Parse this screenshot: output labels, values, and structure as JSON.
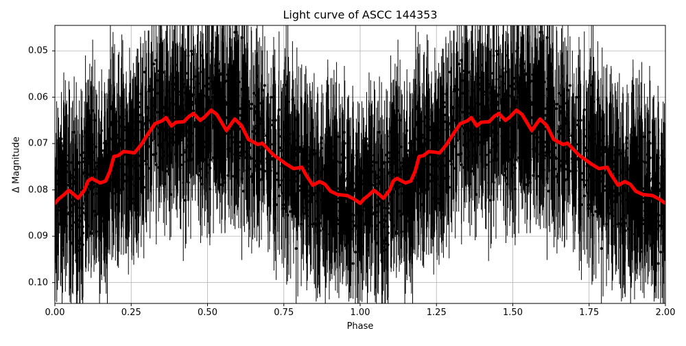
{
  "chart_data": {
    "type": "scatter",
    "title": "Light curve of ASCC 144353",
    "xlabel": "Phase",
    "ylabel": "Δ Magnitude",
    "xlim": [
      0.0,
      2.0
    ],
    "ylim": [
      0.1045,
      0.0445
    ],
    "y_inverted": true,
    "grid": true,
    "xticks": [
      0.0,
      0.25,
      0.5,
      0.75,
      1.0,
      1.25,
      1.5,
      1.75,
      2.0
    ],
    "xtick_labels": [
      "0.00",
      "0.25",
      "0.50",
      "0.75",
      "1.00",
      "1.25",
      "1.50",
      "1.75",
      "2.00"
    ],
    "yticks": [
      0.05,
      0.06,
      0.07,
      0.08,
      0.09,
      0.1
    ],
    "ytick_labels": [
      "0.05",
      "0.06",
      "0.07",
      "0.08",
      "0.09",
      "0.10"
    ],
    "series": [
      {
        "name": "observations",
        "style": "black points with vertical error bars",
        "color": "#000000",
        "note": "Dense phase-folded photometry (thousands of points) spanning roughly 0.045–0.105 mag, duplicated over phase 0–1 and 1–2"
      },
      {
        "name": "binned mean",
        "style": "thick line",
        "color": "#ff0000",
        "period_repeat": true,
        "phase": [
          0.0,
          0.013,
          0.027,
          0.045,
          0.063,
          0.076,
          0.097,
          0.108,
          0.121,
          0.148,
          0.166,
          0.18,
          0.193,
          0.207,
          0.225,
          0.261,
          0.283,
          0.306,
          0.328,
          0.351,
          0.364,
          0.382,
          0.396,
          0.422,
          0.44,
          0.454,
          0.476,
          0.49,
          0.512,
          0.53,
          0.562,
          0.589,
          0.611,
          0.634,
          0.665,
          0.679,
          0.715,
          0.755,
          0.782,
          0.809,
          0.822,
          0.845,
          0.867,
          0.885,
          0.903,
          0.926,
          0.957,
          0.98,
          0.998
        ],
        "values": [
          0.0829,
          0.0819,
          0.0812,
          0.0801,
          0.081,
          0.0818,
          0.08,
          0.0781,
          0.0775,
          0.0785,
          0.0781,
          0.076,
          0.0728,
          0.0726,
          0.0717,
          0.072,
          0.0702,
          0.0678,
          0.0657,
          0.0651,
          0.0644,
          0.0662,
          0.0654,
          0.0653,
          0.0641,
          0.0635,
          0.065,
          0.0643,
          0.0628,
          0.0637,
          0.0672,
          0.0647,
          0.0661,
          0.0691,
          0.0702,
          0.0699,
          0.0724,
          0.0743,
          0.0754,
          0.0751,
          0.0767,
          0.079,
          0.0782,
          0.0788,
          0.0803,
          0.081,
          0.0812,
          0.082,
          0.0828
        ]
      }
    ]
  }
}
